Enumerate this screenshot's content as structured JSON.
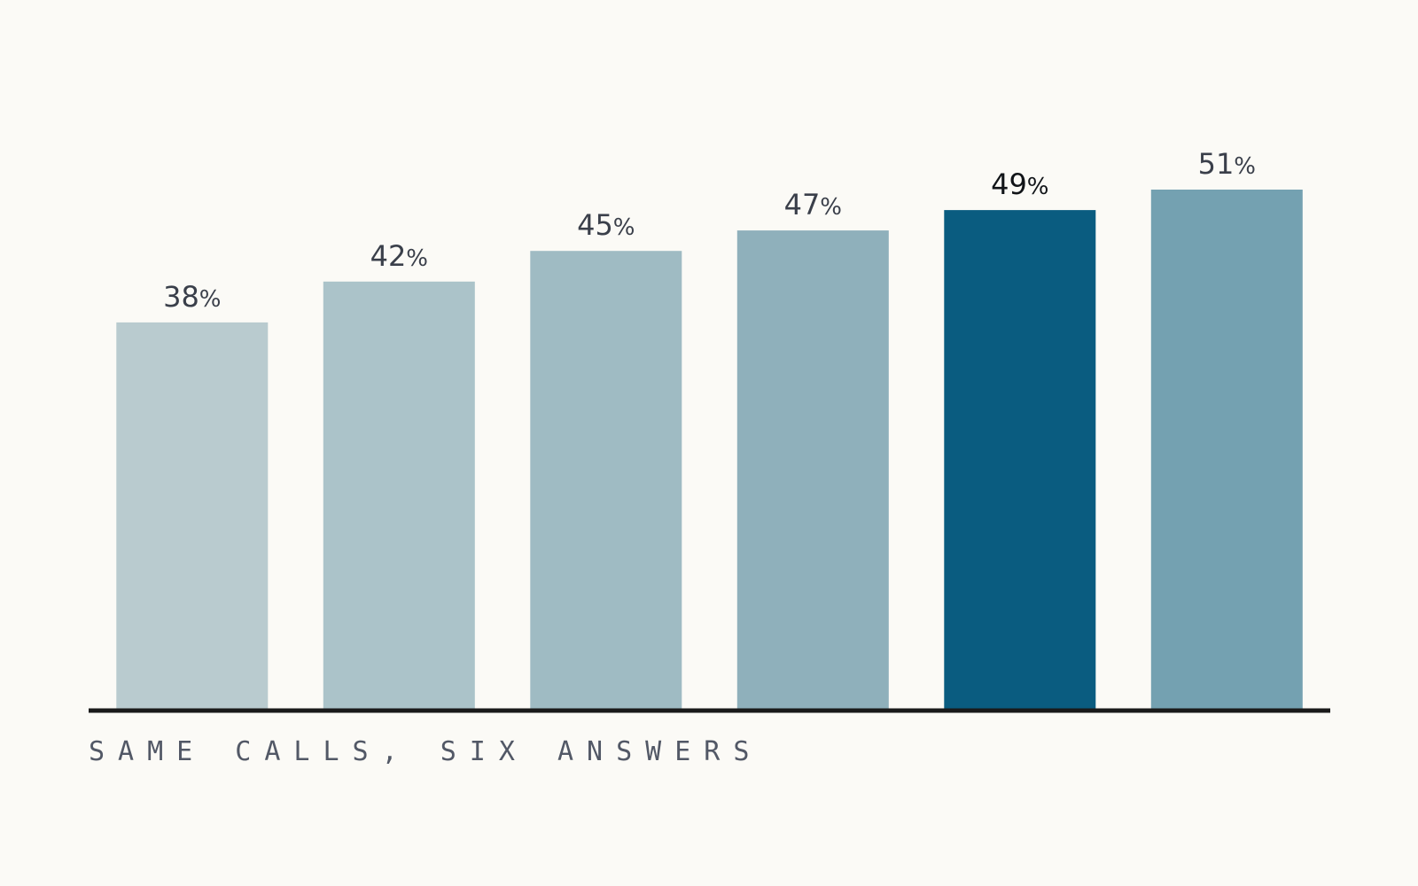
{
  "caption": "SAME CALLS, SIX ANSWERS",
  "chart_data": {
    "type": "bar",
    "categories": [
      "",
      "",
      "",
      "",
      "",
      ""
    ],
    "values": [
      38,
      42,
      45,
      47,
      49,
      51
    ],
    "value_suffix": "%",
    "ylim": [
      0,
      70
    ],
    "grid": false,
    "legend": "none",
    "highlight_index": 4,
    "colors": [
      "#b9cbcf",
      "#abc3c9",
      "#9fbbc3",
      "#8fb0bb",
      "#0a5c80",
      "#74a1b1"
    ],
    "label_colors": {
      "default": "#3a3f4a",
      "highlight": "#111418"
    },
    "baseline_color": "#1a1a1a"
  }
}
